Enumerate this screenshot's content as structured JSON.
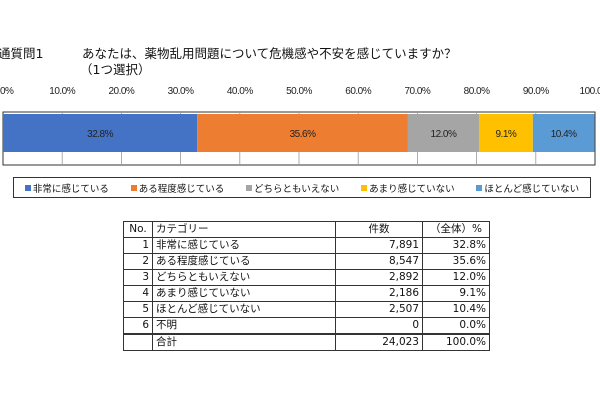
{
  "question_no": "通質問1",
  "question": "あなたは、薬物乱用問題について危機感や不安を感じていますか？",
  "question_note": "（1つ選択）",
  "chart_data": {
    "type": "bar",
    "orientation": "horizontal-stacked-100",
    "xlim": [
      0,
      100
    ],
    "ticks": [
      "0.0%",
      "10.0%",
      "20.0%",
      "30.0%",
      "40.0%",
      "50.0%",
      "60.0%",
      "70.0%",
      "80.0%",
      "90.0%",
      "100.0%"
    ],
    "grid": true,
    "legend_position": "bottom",
    "series": [
      {
        "name": "非常に感じている",
        "value": 32.8,
        "label": "32.8%",
        "color": "#4472c4"
      },
      {
        "name": "ある程度感じている",
        "value": 35.6,
        "label": "35.6%",
        "color": "#ed7d31"
      },
      {
        "name": "どちらともいえない",
        "value": 12.0,
        "label": "12.0%",
        "color": "#a5a5a5"
      },
      {
        "name": "あまり感じていない",
        "value": 9.1,
        "label": "9.1%",
        "color": "#ffc000"
      },
      {
        "name": "ほとんど感じていない",
        "value": 10.4,
        "label": "10.4%",
        "color": "#5b9bd5"
      }
    ]
  },
  "table": {
    "headers": [
      "No.",
      "カテゴリー",
      "件数",
      "（全体）%"
    ],
    "rows": [
      [
        "1",
        "非常に感じている",
        "7,891",
        "32.8%"
      ],
      [
        "2",
        "ある程度感じている",
        "8,547",
        "35.6%"
      ],
      [
        "3",
        "どちらともいえない",
        "2,892",
        "12.0%"
      ],
      [
        "4",
        "あまり感じていない",
        "2,186",
        "9.1%"
      ],
      [
        "5",
        "ほとんど感じていない",
        "2,507",
        "10.4%"
      ],
      [
        "6",
        "不明",
        "0",
        "0.0%"
      ]
    ],
    "total": [
      "",
      "合計",
      "24,023",
      "100.0%"
    ]
  }
}
